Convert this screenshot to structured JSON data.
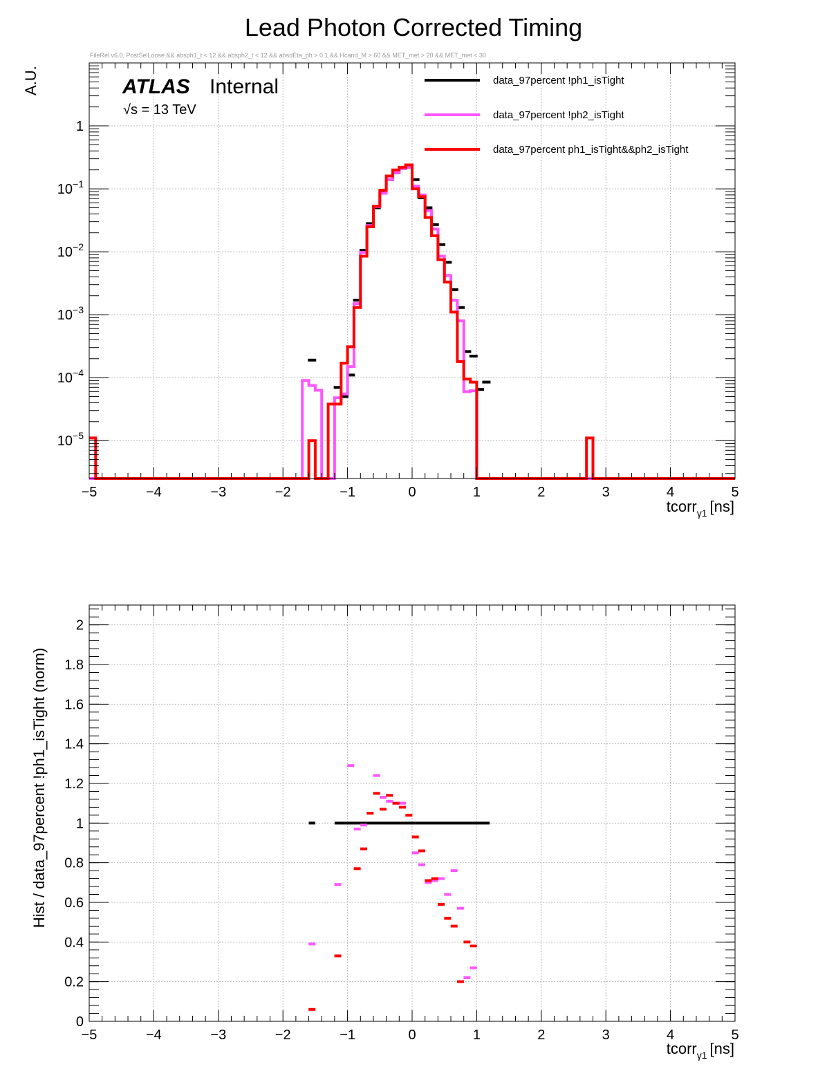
{
  "chart_data": [
    {
      "type": "line",
      "title": "Lead Photon Corrected Timing",
      "cut_string": "FileRel v6.0, PostSelLoose &&  absph1_t < 12 && absph2_t < 12 && absdEta_ph > 0.1 && Hcand_M > 60 && MET_met > 20 && MET_met < 30",
      "label_atlas": "ATLAS",
      "label_internal": "Internal",
      "label_energy": "√s = 13 TeV",
      "xlabel_main": "tcorr",
      "xlabel_sub": "γ1",
      "xlabel_unit": "[ns]",
      "ylabel": "A.U.",
      "log_y": true,
      "xlim": [
        -5,
        5
      ],
      "ylim": [
        2.5e-06,
        10
      ],
      "grid": true,
      "legend_position": "top-right",
      "x_ticks": [
        "−5",
        "−4",
        "−3",
        "−2",
        "−1",
        "0",
        "1",
        "2",
        "3",
        "4",
        "5"
      ],
      "y_ticks": [
        {
          "value": 1,
          "label": "1",
          "exp": ""
        },
        {
          "value": 0.1,
          "label": "10",
          "exp": "−1"
        },
        {
          "value": 0.01,
          "label": "10",
          "exp": "−2"
        },
        {
          "value": 0.001,
          "label": "10",
          "exp": "−3"
        },
        {
          "value": 0.0001,
          "label": "10",
          "exp": "−4"
        },
        {
          "value": 1e-05,
          "label": "10",
          "exp": "−5"
        }
      ],
      "series": [
        {
          "name": "data_97percent  !ph1_isTight",
          "style": "points",
          "color": "#000000",
          "points": [
            [
              -1.55,
              0.00019
            ],
            [
              -1.15,
              7e-05
            ],
            [
              -1.05,
              5e-05
            ],
            [
              -0.95,
              0.00011
            ],
            [
              -0.85,
              0.0017
            ],
            [
              -0.75,
              0.0105
            ],
            [
              -0.65,
              0.028
            ],
            [
              -0.55,
              0.05
            ],
            [
              -0.45,
              0.088
            ],
            [
              -0.35,
              0.14
            ],
            [
              -0.25,
              0.18
            ],
            [
              -0.15,
              0.21
            ],
            [
              -0.05,
              0.22
            ],
            [
              0.05,
              0.14
            ],
            [
              0.15,
              0.072
            ],
            [
              0.25,
              0.05
            ],
            [
              0.35,
              0.027
            ],
            [
              0.45,
              0.013
            ],
            [
              0.55,
              0.0068
            ],
            [
              0.65,
              0.0025
            ],
            [
              0.75,
              0.0013
            ],
            [
              0.85,
              0.00026
            ],
            [
              0.95,
              0.00022
            ],
            [
              1.05,
              6.5e-05
            ],
            [
              1.15,
              8.5e-05
            ]
          ]
        },
        {
          "name": "data_97percent  !ph2_isTight",
          "style": "step",
          "color": "#ff55ff",
          "edges": [
            -5.0,
            -4.9,
            -1.7,
            -1.6,
            -1.5,
            -1.4,
            -1.3,
            -1.2,
            -1.1,
            -1.0,
            -0.9,
            -0.8,
            -0.7,
            -0.6,
            -0.5,
            -0.4,
            -0.3,
            -0.2,
            -0.1,
            0.0,
            0.1,
            0.2,
            0.3,
            0.4,
            0.5,
            0.6,
            0.7,
            0.8,
            0.9,
            1.0,
            5.0
          ],
          "values": [
            2.5e-06,
            2.5e-06,
            9e-05,
            7.5e-05,
            6.3e-05,
            2.5e-06,
            2.5e-06,
            4.8e-05,
            5.5e-05,
            0.00015,
            0.0015,
            0.0098,
            0.026,
            0.052,
            0.085,
            0.14,
            0.18,
            0.21,
            0.22,
            0.11,
            0.08,
            0.045,
            0.023,
            0.0085,
            0.0042,
            0.0017,
            0.0008,
            6e-05,
            6.2e-05,
            2.5e-06
          ]
        },
        {
          "name": "data_97percent  ph1_isTight&&ph2_isTight",
          "style": "step",
          "color": "#ff0000",
          "edges": [
            -5.0,
            -4.9,
            -1.6,
            -1.5,
            -1.4,
            -1.3,
            -1.2,
            -1.1,
            -1.0,
            -0.9,
            -0.8,
            -0.7,
            -0.6,
            -0.5,
            -0.4,
            -0.3,
            -0.2,
            -0.1,
            0.0,
            0.1,
            0.2,
            0.3,
            0.4,
            0.5,
            0.6,
            0.7,
            0.8,
            0.9,
            1.0,
            2.7,
            2.8,
            5.0
          ],
          "values": [
            1.1e-05,
            2.5e-06,
            1e-05,
            2.5e-06,
            2.5e-06,
            3.8e-05,
            3.8e-05,
            0.00017,
            0.00031,
            0.0013,
            0.0085,
            0.025,
            0.053,
            0.095,
            0.16,
            0.2,
            0.22,
            0.24,
            0.1,
            0.075,
            0.035,
            0.018,
            0.0075,
            0.0033,
            0.0011,
            0.00018,
            9.5e-05,
            8.5e-05,
            2.5e-06,
            1.1e-05,
            2.5e-06
          ]
        }
      ]
    },
    {
      "type": "scatter",
      "ylabel": "Hist / data_97percent  !ph1_isTight (norm)",
      "xlabel_main": "tcorr",
      "xlabel_sub": "γ1",
      "xlabel_unit": "[ns]",
      "xlim": [
        -5,
        5
      ],
      "ylim": [
        0,
        2.1
      ],
      "grid": true,
      "x_ticks": [
        "−5",
        "−4",
        "−3",
        "−2",
        "−1",
        "0",
        "1",
        "2",
        "3",
        "4",
        "5"
      ],
      "y_ticks": [
        {
          "value": 0,
          "label": "0"
        },
        {
          "value": 0.2,
          "label": "0.2"
        },
        {
          "value": 0.4,
          "label": "0.4"
        },
        {
          "value": 0.6,
          "label": "0.6"
        },
        {
          "value": 0.8,
          "label": "0.8"
        },
        {
          "value": 1,
          "label": "1"
        },
        {
          "value": 1.2,
          "label": "1.2"
        },
        {
          "value": 1.4,
          "label": "1.4"
        },
        {
          "value": 1.6,
          "label": "1.6"
        },
        {
          "value": 1.8,
          "label": "1.8"
        },
        {
          "value": 2,
          "label": "2"
        }
      ],
      "series": [
        {
          "name": "data_97percent  !ph1_isTight",
          "color": "#000000",
          "segments": [
            [
              -1.6,
              -1.5,
              1.0
            ],
            [
              -1.2,
              1.2,
              1.0
            ]
          ]
        },
        {
          "name": "data_97percent  !ph2_isTight",
          "color": "#ff55ff",
          "points": [
            [
              -1.55,
              0.39
            ],
            [
              -1.15,
              0.69
            ],
            [
              -0.95,
              1.29
            ],
            [
              -0.85,
              0.97
            ],
            [
              -0.75,
              0.99
            ],
            [
              -0.55,
              1.24
            ],
            [
              -0.45,
              1.13
            ],
            [
              -0.35,
              1.11
            ],
            [
              -0.25,
              1.1
            ],
            [
              -0.15,
              1.1
            ],
            [
              0.05,
              0.85
            ],
            [
              0.15,
              0.79
            ],
            [
              0.25,
              0.7
            ],
            [
              0.35,
              0.71
            ],
            [
              0.45,
              0.72
            ],
            [
              0.55,
              0.64
            ],
            [
              0.65,
              0.76
            ],
            [
              0.75,
              0.57
            ],
            [
              0.85,
              0.22
            ],
            [
              0.95,
              0.27
            ]
          ]
        },
        {
          "name": "data_97percent  ph1_isTight&&ph2_isTight",
          "color": "#ff0000",
          "points": [
            [
              -1.55,
              0.06
            ],
            [
              -1.15,
              0.33
            ],
            [
              -0.85,
              0.77
            ],
            [
              -0.75,
              0.87
            ],
            [
              -0.65,
              1.05
            ],
            [
              -0.55,
              1.15
            ],
            [
              -0.45,
              1.07
            ],
            [
              -0.35,
              1.14
            ],
            [
              -0.25,
              1.1
            ],
            [
              -0.15,
              1.08
            ],
            [
              -0.05,
              1.04
            ],
            [
              0.05,
              0.93
            ],
            [
              0.15,
              0.86
            ],
            [
              0.25,
              0.71
            ],
            [
              0.35,
              0.72
            ],
            [
              0.45,
              0.59
            ],
            [
              0.55,
              0.52
            ],
            [
              0.65,
              0.48
            ],
            [
              0.75,
              0.2
            ],
            [
              0.85,
              0.4
            ],
            [
              0.95,
              0.38
            ]
          ]
        }
      ]
    }
  ]
}
